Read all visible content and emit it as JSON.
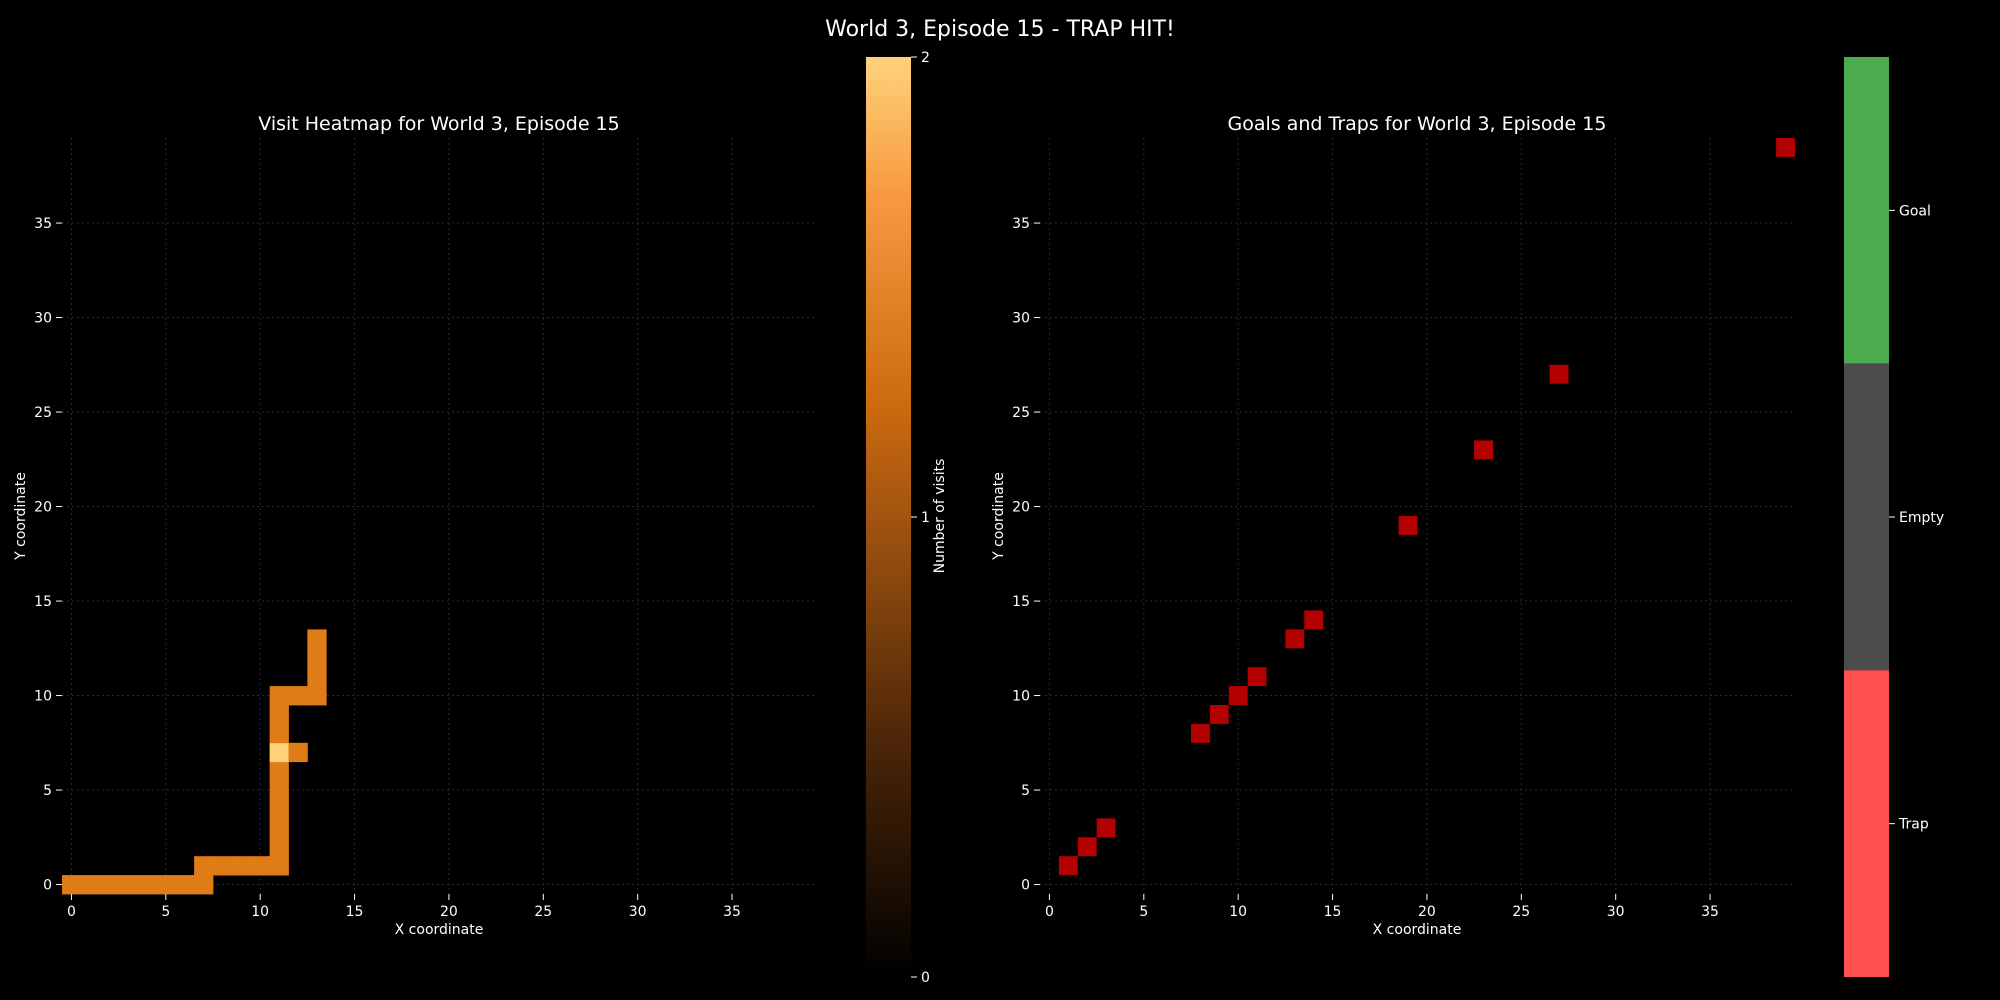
{
  "figure": {
    "suptitle": "World 3, Episode 15 - TRAP HIT!"
  },
  "colors": {
    "background": "#000000",
    "grid": "#2a2a2a",
    "text": "#ffffff",
    "visit_cells": "#e07c16",
    "visit_max": "#ffd27a",
    "trap_marker": "#b30000",
    "cbar_goal": "#4caa4f",
    "cbar_empty": "#4d4d4d",
    "cbar_trap": "#ff5050"
  },
  "chart_data": [
    {
      "type": "heatmap",
      "title": "Visit Heatmap for World 3, Episode 15",
      "xlabel": "X coordinate",
      "ylabel": "Y coordinate",
      "xlim": [
        -0.5,
        39.5
      ],
      "ylim": [
        -0.5,
        39.5
      ],
      "xticks": [
        0,
        5,
        10,
        15,
        20,
        25,
        30,
        35
      ],
      "yticks": [
        0,
        5,
        10,
        15,
        20,
        25,
        30,
        35
      ],
      "grid": true,
      "colorbar": {
        "label": "Number of visits",
        "min": 0,
        "max": 2,
        "ticks": [
          0,
          1,
          2
        ],
        "colormap": "copper-to-yellow"
      },
      "cells": [
        {
          "x": 0,
          "y": 0,
          "value": 1
        },
        {
          "x": 1,
          "y": 0,
          "value": 1
        },
        {
          "x": 2,
          "y": 0,
          "value": 1
        },
        {
          "x": 3,
          "y": 0,
          "value": 1
        },
        {
          "x": 4,
          "y": 0,
          "value": 1
        },
        {
          "x": 5,
          "y": 0,
          "value": 1
        },
        {
          "x": 6,
          "y": 0,
          "value": 1
        },
        {
          "x": 7,
          "y": 0,
          "value": 1
        },
        {
          "x": 7,
          "y": 1,
          "value": 1
        },
        {
          "x": 8,
          "y": 1,
          "value": 1
        },
        {
          "x": 9,
          "y": 1,
          "value": 1
        },
        {
          "x": 10,
          "y": 1,
          "value": 1
        },
        {
          "x": 11,
          "y": 1,
          "value": 1
        },
        {
          "x": 11,
          "y": 2,
          "value": 1
        },
        {
          "x": 11,
          "y": 3,
          "value": 1
        },
        {
          "x": 11,
          "y": 4,
          "value": 1
        },
        {
          "x": 11,
          "y": 5,
          "value": 1
        },
        {
          "x": 11,
          "y": 6,
          "value": 1
        },
        {
          "x": 11,
          "y": 7,
          "value": 2
        },
        {
          "x": 12,
          "y": 7,
          "value": 1
        },
        {
          "x": 11,
          "y": 8,
          "value": 1
        },
        {
          "x": 11,
          "y": 9,
          "value": 1
        },
        {
          "x": 11,
          "y": 10,
          "value": 1
        },
        {
          "x": 12,
          "y": 10,
          "value": 1
        },
        {
          "x": 13,
          "y": 10,
          "value": 1
        },
        {
          "x": 13,
          "y": 11,
          "value": 1
        },
        {
          "x": 13,
          "y": 12,
          "value": 1
        },
        {
          "x": 13,
          "y": 13,
          "value": 1
        }
      ]
    },
    {
      "type": "heatmap",
      "title": "Goals and Traps for World 3, Episode 15",
      "xlabel": "X coordinate",
      "ylabel": "Y coordinate",
      "xlim": [
        -0.5,
        39.5
      ],
      "ylim": [
        -0.5,
        39.5
      ],
      "xticks": [
        0,
        5,
        10,
        15,
        20,
        25,
        30,
        35
      ],
      "yticks": [
        0,
        5,
        10,
        15,
        20,
        25,
        30,
        35
      ],
      "grid": true,
      "colorbar": {
        "categories": [
          "Trap",
          "Empty",
          "Goal"
        ]
      },
      "traps": [
        {
          "x": 1,
          "y": 1
        },
        {
          "x": 2,
          "y": 2
        },
        {
          "x": 3,
          "y": 3
        },
        {
          "x": 8,
          "y": 8
        },
        {
          "x": 9,
          "y": 9
        },
        {
          "x": 10,
          "y": 10
        },
        {
          "x": 11,
          "y": 11
        },
        {
          "x": 13,
          "y": 13
        },
        {
          "x": 14,
          "y": 14
        },
        {
          "x": 19,
          "y": 19
        },
        {
          "x": 23,
          "y": 23
        },
        {
          "x": 27,
          "y": 27
        },
        {
          "x": 39,
          "y": 39
        }
      ]
    }
  ]
}
